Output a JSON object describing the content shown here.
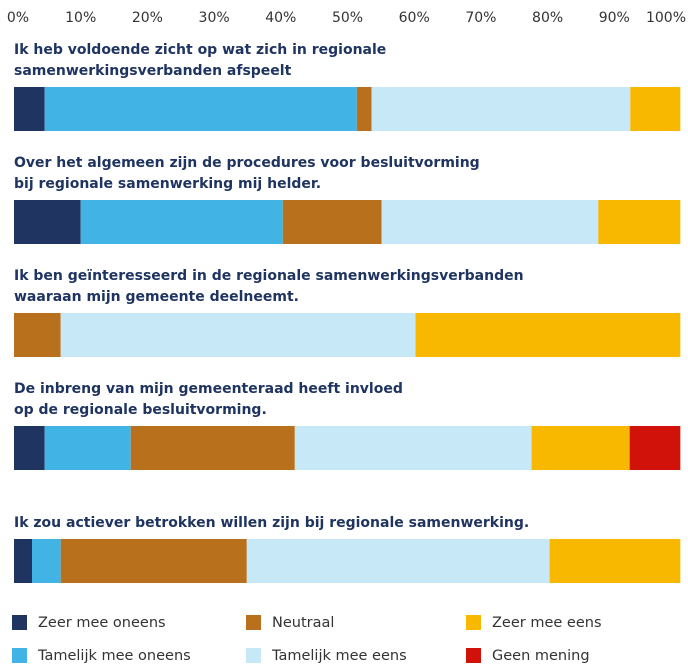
{
  "chart_data": {
    "type": "stacked-bar-horizontal",
    "categories": [
      "Ik heb voldoende zicht op wat zich in regionale\nsamenwerkingsverbanden afspeelt",
      "Over het algemeen zijn de procedures voor besluitvorming\nbij regionale samenwerking mij helder.",
      "Ik ben geïnteresseerd in de regionale samenwerkingsverbanden\nwaaraan mijn gemeente deelneemt.",
      "De inbreng van mijn gemeenteraad heeft invloed\nop de regionale besluitvorming.",
      "Ik zou actiever betrokken willen zijn bij regionale samenwerking."
    ],
    "series": [
      {
        "name": "Zeer mee oneens",
        "color": "#1f3461",
        "values": [
          4.6,
          10.0,
          0,
          4.6,
          2.7
        ]
      },
      {
        "name": "Tamelijk mee oneens",
        "color": "#41b4e5",
        "values": [
          46.8,
          30.3,
          0,
          12.9,
          4.3
        ]
      },
      {
        "name": "Neutraal",
        "color": "#b8701c",
        "values": [
          2.2,
          14.8,
          7.0,
          24.6,
          27.9
        ]
      },
      {
        "name": "Tamelijk mee eens",
        "color": "#c6e8f7",
        "values": [
          38.8,
          32.5,
          53.2,
          35.5,
          45.4
        ]
      },
      {
        "name": "Zeer mee eens",
        "color": "#f8b800",
        "values": [
          7.5,
          12.3,
          39.7,
          14.7,
          19.6
        ]
      },
      {
        "name": "Geen mening",
        "color": "#d0120a",
        "values": [
          0,
          0,
          0,
          7.6,
          0
        ]
      }
    ],
    "xlim": [
      0,
      100
    ],
    "xticks": [
      {
        "value": 0,
        "label": "0%"
      },
      {
        "value": 10,
        "label": "10%"
      },
      {
        "value": 20,
        "label": "20%"
      },
      {
        "value": 30,
        "label": "30%"
      },
      {
        "value": 40,
        "label": "40%"
      },
      {
        "value": 50,
        "label": "50%"
      },
      {
        "value": 60,
        "label": "60%"
      },
      {
        "value": 70,
        "label": "70%"
      },
      {
        "value": 80,
        "label": "80%"
      },
      {
        "value": 90,
        "label": "90%"
      },
      {
        "value": 100,
        "label": "100%"
      }
    ],
    "legend": "bottom"
  }
}
